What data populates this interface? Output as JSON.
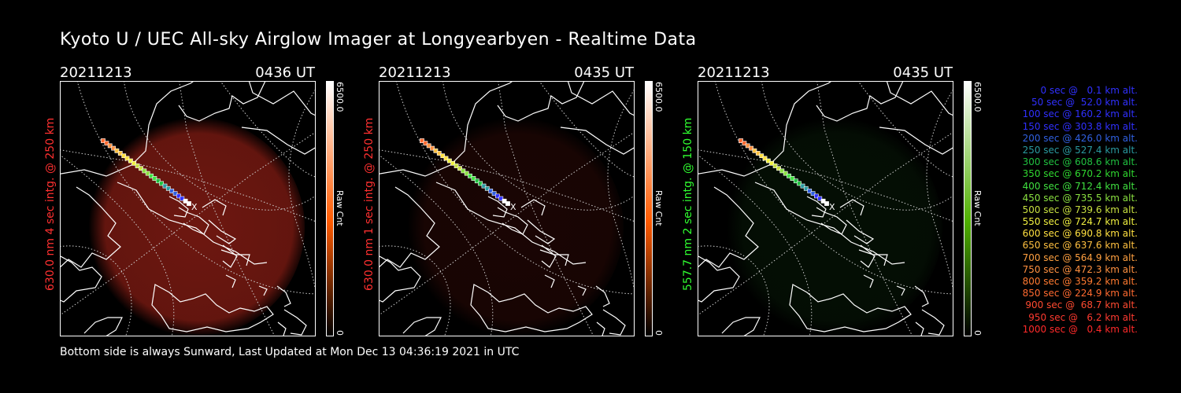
{
  "page": {
    "title": "Kyoto U / UEC All-sky Airglow Imager at Longyearbyen - Realtime Data"
  },
  "footer": {
    "text": "Bottom side is always Sunward, Last Updated at Mon Dec 13 04:36:19 2021 in UTC"
  },
  "panels": [
    {
      "date": "20211213",
      "time": "0436 UT",
      "side_label": "630.0 nm 4 sec intg. @ 250 km",
      "color": "#ff3030",
      "glow": "#7a1a12",
      "glow_level": 0.9,
      "cbar_max": "6500.0",
      "cbar_min": "0",
      "cbar_unit": "Raw Cnt",
      "cbar_color": "#ff5a00"
    },
    {
      "date": "20211213",
      "time": "0435 UT",
      "side_label": "630.0 nm 1 sec intg. @ 250 km",
      "color": "#ff3030",
      "glow": "#3a0c08",
      "glow_level": 0.45,
      "cbar_max": "6500.0",
      "cbar_min": "0",
      "cbar_unit": "Raw Cnt",
      "cbar_color": "#ff5a00"
    },
    {
      "date": "20211213",
      "time": "0435 UT",
      "side_label": "557.7 nm 2 sec intg. @ 150 km",
      "color": "#30ff30",
      "glow": "#0c2a0c",
      "glow_level": 0.35,
      "cbar_max": "6500.0",
      "cbar_min": "0",
      "cbar_unit": "Raw Cnt",
      "cbar_color": "#4fb000"
    }
  ],
  "legend": [
    {
      "text": "0 sec @   0.1 km alt.",
      "color": "#3030ff"
    },
    {
      "text": "50 sec @  52.0 km alt.",
      "color": "#3030ff"
    },
    {
      "text": "100 sec @ 160.2 km alt.",
      "color": "#3030ff"
    },
    {
      "text": "150 sec @ 303.8 km alt.",
      "color": "#3030ff"
    },
    {
      "text": "200 sec @ 426.0 km alt.",
      "color": "#3060e0"
    },
    {
      "text": "250 sec @ 527.4 km alt.",
      "color": "#2a9aa0"
    },
    {
      "text": "300 sec @ 608.6 km alt.",
      "color": "#20c040"
    },
    {
      "text": "350 sec @ 670.2 km alt.",
      "color": "#30d830"
    },
    {
      "text": "400 sec @ 712.4 km alt.",
      "color": "#40e040"
    },
    {
      "text": "450 sec @ 735.5 km alt.",
      "color": "#8ae040"
    },
    {
      "text": "500 sec @ 739.6 km alt.",
      "color": "#c8e040"
    },
    {
      "text": "550 sec @ 724.7 km alt.",
      "color": "#f0f040"
    },
    {
      "text": "600 sec @ 690.8 km alt.",
      "color": "#ffe040"
    },
    {
      "text": "650 sec @ 637.6 km alt.",
      "color": "#ffc040"
    },
    {
      "text": "700 sec @ 564.9 km alt.",
      "color": "#ffa040"
    },
    {
      "text": "750 sec @ 472.3 km alt.",
      "color": "#ff9040"
    },
    {
      "text": "800 sec @ 359.2 km alt.",
      "color": "#ff7a30"
    },
    {
      "text": "850 sec @ 224.9 km alt.",
      "color": "#ff6a30"
    },
    {
      "text": "900 sec @  68.7 km alt.",
      "color": "#ff4a30"
    },
    {
      "text": "950 sec @   6.2 km alt.",
      "color": "#ff3a30"
    },
    {
      "text": "1000 sec @   0.4 km alt.",
      "color": "#ff2a2a"
    }
  ],
  "trajectory_colors": [
    "#ff6a30",
    "#ff9040",
    "#ffc040",
    "#ffe040",
    "#f0f040",
    "#c8e040",
    "#8ae040",
    "#40e040",
    "#20c040",
    "#2a9aa0",
    "#3060e0",
    "#3030ff",
    "#ffffff"
  ]
}
